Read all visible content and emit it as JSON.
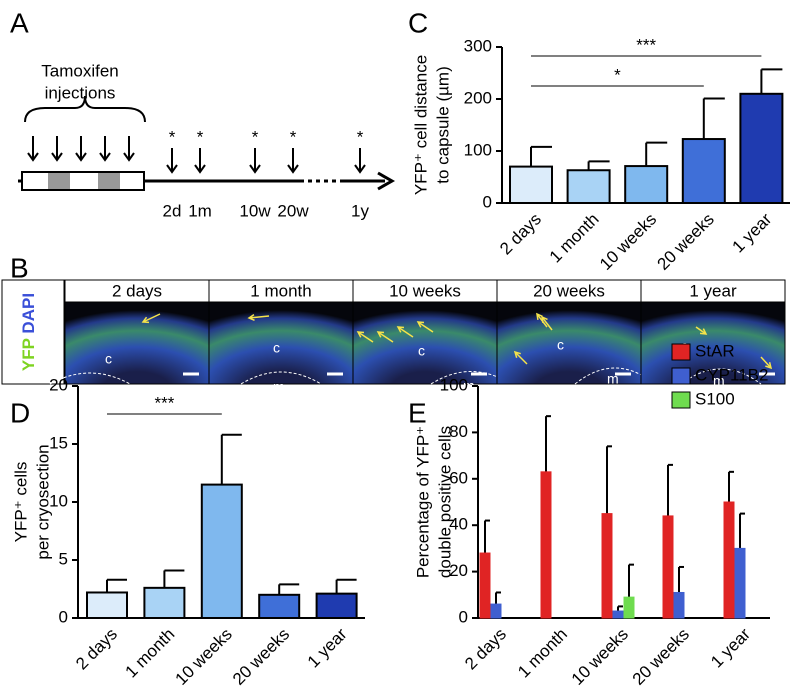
{
  "panel_labels": [
    "A",
    "B",
    "C",
    "D",
    "E"
  ],
  "timeline": {
    "title": [
      "Tamoxifen",
      "injections"
    ],
    "markers": [
      "*",
      "*",
      "*",
      "*",
      "*"
    ],
    "labels": [
      "2d",
      "1m",
      "10w",
      "20w",
      "1y"
    ]
  },
  "micrographs": {
    "columns": [
      "2 days",
      "1 month",
      "10 weeks",
      "20 weeks",
      "1 year"
    ],
    "stain_labels": [
      "YFP",
      "DAPI"
    ],
    "region_labels": [
      "c",
      "m"
    ]
  },
  "chart_data": [
    {
      "type": "bar",
      "ylabel": [
        "YFP⁺ cell distance",
        "to capsule (µm)"
      ],
      "categories": [
        "2 days",
        "1 month",
        "10 weeks",
        "20 weeks",
        "1 year"
      ],
      "values": [
        70,
        63,
        71,
        123,
        210
      ],
      "errors": [
        38,
        17,
        45,
        78,
        47
      ],
      "colors": [
        "#dcecfa",
        "#a9d3f5",
        "#7fb8ee",
        "#3f6fd8",
        "#1f3bb0"
      ],
      "ylim": [
        0,
        300
      ],
      "yticks": [
        0,
        100,
        200,
        300
      ],
      "annotations": [
        {
          "from": "2 days",
          "to": "1 year",
          "text": "***"
        },
        {
          "from": "2 days",
          "to": "20 weeks",
          "text": "*"
        }
      ]
    },
    {
      "type": "bar",
      "ylabel": [
        "YFP⁺ cells",
        "per cryosection"
      ],
      "categories": [
        "2 days",
        "1 month",
        "10 weeks",
        "20 weeks",
        "1 year"
      ],
      "values": [
        2.2,
        2.6,
        11.5,
        2.0,
        2.1
      ],
      "errors": [
        1.1,
        1.5,
        4.3,
        0.9,
        1.2
      ],
      "colors": [
        "#dcecfa",
        "#a9d3f5",
        "#7fb8ee",
        "#3f6fd8",
        "#1f3bb0"
      ],
      "ylim": [
        0,
        20
      ],
      "yticks": [
        0,
        5,
        10,
        15,
        20
      ],
      "annotations": [
        {
          "from": "2 days",
          "to": "10 weeks",
          "text": "***"
        }
      ]
    },
    {
      "type": "bar",
      "ylabel": [
        "Percentage of YFP⁺",
        "double positive cells"
      ],
      "categories": [
        "2 days",
        "1 month",
        "10 weeks",
        "20 weeks",
        "1 year"
      ],
      "series": [
        {
          "name": "StAR",
          "color": "#e02424",
          "values": [
            28,
            63,
            45,
            44,
            50
          ],
          "errors": [
            14,
            24,
            29,
            22,
            13
          ]
        },
        {
          "name": "CYP11B2",
          "color": "#3f5fd0",
          "values": [
            6,
            null,
            3,
            11,
            30
          ],
          "errors": [
            5,
            null,
            2,
            11,
            15
          ]
        },
        {
          "name": "S100",
          "color": "#6fdc4f",
          "values": [
            null,
            null,
            9,
            null,
            null
          ],
          "errors": [
            null,
            null,
            14,
            null,
            null
          ]
        }
      ],
      "ylim": [
        0,
        100
      ],
      "yticks": [
        0,
        20,
        40,
        60,
        80,
        100
      ]
    }
  ]
}
